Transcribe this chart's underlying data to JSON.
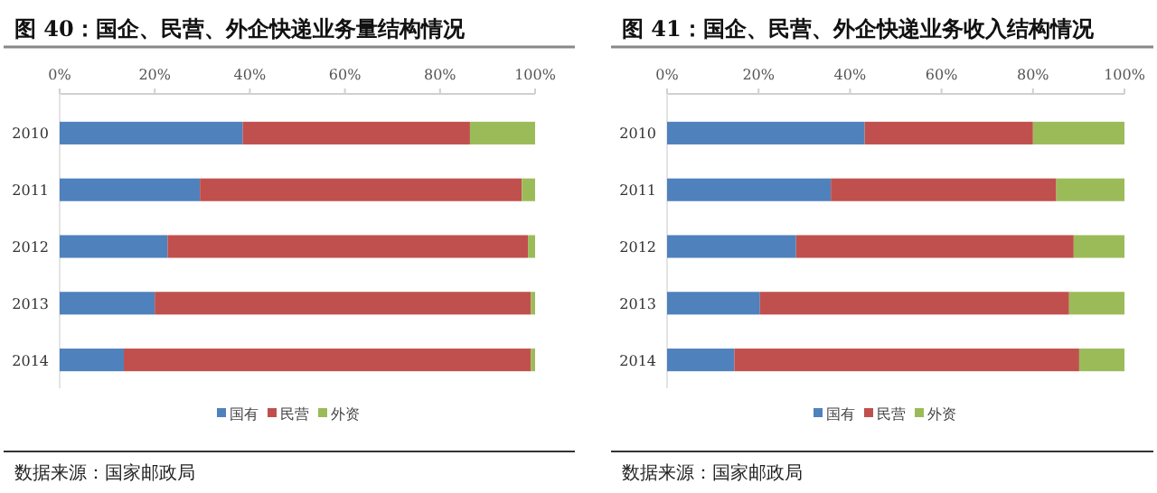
{
  "chart_data": [
    {
      "type": "bar",
      "orientation": "horizontal",
      "stacked": true,
      "title": "图 40：国企、民营、外企快递业务量结构情况",
      "categories": [
        "2010",
        "2011",
        "2012",
        "2013",
        "2014"
      ],
      "series": [
        {
          "name": "国有",
          "color": "#4f81bd",
          "values": [
            38.5,
            29.5,
            22.7,
            20.0,
            13.5
          ]
        },
        {
          "name": "民营",
          "color": "#c0504d",
          "values": [
            47.8,
            67.7,
            75.8,
            79.1,
            85.6
          ]
        },
        {
          "name": "外资",
          "color": "#9bbb59",
          "values": [
            13.7,
            2.8,
            1.5,
            0.9,
            0.9
          ]
        }
      ],
      "xlim": [
        0,
        100
      ],
      "xticks": [
        {
          "value": 0,
          "label": "0%"
        },
        {
          "value": 20,
          "label": "20%"
        },
        {
          "value": 40,
          "label": "40%"
        },
        {
          "value": 60,
          "label": "60%"
        },
        {
          "value": 80,
          "label": "80%"
        },
        {
          "value": 100,
          "label": "100%"
        }
      ],
      "legend": "bottom",
      "annotations": [
        "数据来源：国家邮政局"
      ]
    },
    {
      "type": "bar",
      "orientation": "horizontal",
      "stacked": true,
      "title": "图 41：国企、民营、外企快递业务收入结构情况",
      "categories": [
        "2010",
        "2011",
        "2012",
        "2013",
        "2014"
      ],
      "series": [
        {
          "name": "国有",
          "color": "#4f81bd",
          "values": [
            43.2,
            35.8,
            28.2,
            20.3,
            14.7
          ]
        },
        {
          "name": "民营",
          "color": "#c0504d",
          "values": [
            36.8,
            49.3,
            60.7,
            67.6,
            75.4
          ]
        },
        {
          "name": "外资",
          "color": "#9bbb59",
          "values": [
            20.0,
            14.9,
            11.1,
            12.1,
            9.9
          ]
        }
      ],
      "xlim": [
        0,
        100
      ],
      "xticks": [
        {
          "value": 0,
          "label": "0%"
        },
        {
          "value": 20,
          "label": "20%"
        },
        {
          "value": 40,
          "label": "40%"
        },
        {
          "value": 60,
          "label": "60%"
        },
        {
          "value": 80,
          "label": "80%"
        },
        {
          "value": 100,
          "label": "100%"
        }
      ],
      "legend": "bottom",
      "annotations": [
        "数据来源：国家邮政局"
      ]
    }
  ]
}
